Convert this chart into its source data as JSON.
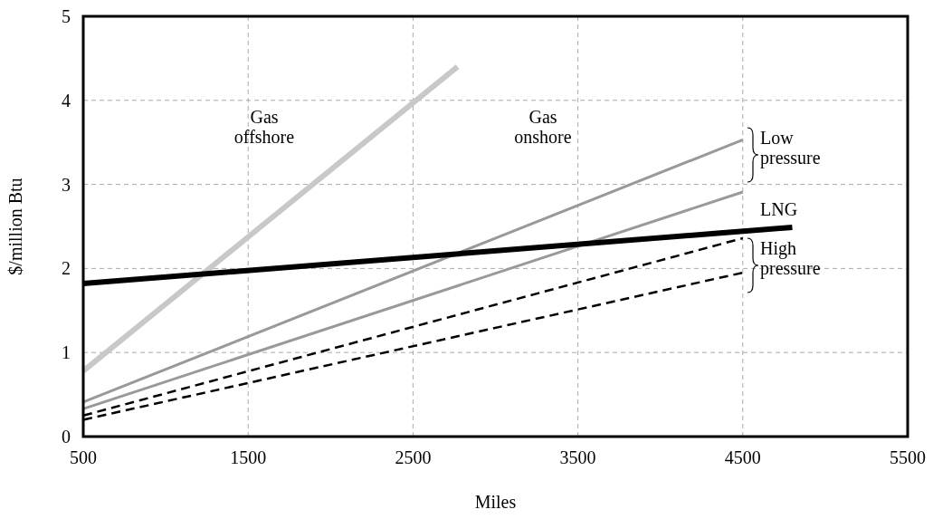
{
  "chart_data": {
    "type": "line",
    "xlabel": "Miles",
    "ylabel": "$/million Btu",
    "xlim": [
      500,
      5500
    ],
    "ylim": [
      0,
      5
    ],
    "xticks": [
      500,
      1500,
      2500,
      3500,
      4500,
      5500
    ],
    "yticks": [
      0,
      1,
      2,
      3,
      4,
      5
    ],
    "grid": true,
    "series": [
      {
        "color": "#c8c8c8",
        "x": [
          500,
          2770
        ],
        "values": [
          0.78,
          4.4
        ]
      },
      {
        "color": "#999999",
        "x": [
          500,
          4500
        ],
        "values": [
          0.41,
          3.53
        ]
      },
      {
        "color": "#999999",
        "x": [
          500,
          4500
        ],
        "values": [
          0.33,
          2.91
        ]
      },
      {
        "color": "#000000",
        "x": [
          500,
          4800
        ],
        "values": [
          1.82,
          2.49
        ]
      },
      {
        "color": "#000000",
        "line_style": "dashed",
        "x": [
          500,
          4500
        ],
        "values": [
          0.25,
          2.36
        ]
      },
      {
        "color": "#000000",
        "line_style": "dashed",
        "x": [
          500,
          4500
        ],
        "values": [
          0.2,
          1.95
        ]
      }
    ],
    "annotations": [
      "Gas offshore",
      "Gas onshore",
      "Low pressure",
      "LNG",
      "High pressure"
    ]
  }
}
